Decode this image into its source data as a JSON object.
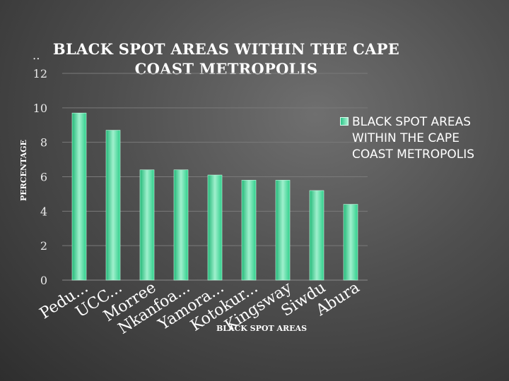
{
  "chart_data": {
    "type": "bar",
    "title": "BLACK SPOT AREAS WITHIN THE CAPE COAST METROPOLIS",
    "xlabel": "BLACK SPOT AREAS",
    "ylabel": "PERCENTAGE",
    "ylim": [
      0,
      12
    ],
    "yticks": [
      0,
      2,
      4,
      6,
      8,
      10,
      12
    ],
    "categories": [
      "Pedu...",
      "UCC...",
      "Morree",
      "Nkanfoa...",
      "Yamora...",
      "Kotokur...",
      "Kingsway",
      "Siwdu",
      "Abura"
    ],
    "series": [
      {
        "name": "BLACK SPOT AREAS WITHIN THE CAPE COAST METROPOLIS",
        "values": [
          9.7,
          8.7,
          6.4,
          6.4,
          6.1,
          5.8,
          5.8,
          5.2,
          4.4
        ]
      }
    ],
    "grid": true,
    "legend_position": "right",
    "bar_color": "#3fd89a"
  },
  "slide_marker": ":"
}
